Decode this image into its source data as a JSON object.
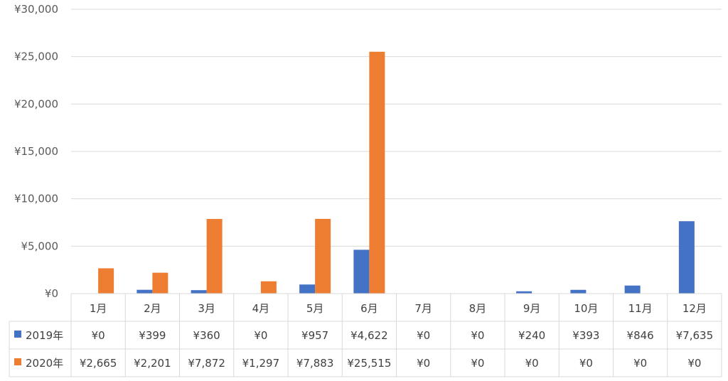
{
  "chart_data": {
    "type": "bar",
    "categories": [
      "1月",
      "2月",
      "3月",
      "4月",
      "5月",
      "6月",
      "7月",
      "8月",
      "9月",
      "10月",
      "11月",
      "12月"
    ],
    "series": [
      {
        "name": "2019年",
        "color": "#4472C4",
        "values": [
          0,
          399,
          360,
          0,
          957,
          4622,
          0,
          0,
          240,
          393,
          846,
          7635
        ],
        "labels": [
          "¥0",
          "¥399",
          "¥360",
          "¥0",
          "¥957",
          "¥4,622",
          "¥0",
          "¥0",
          "¥240",
          "¥393",
          "¥846",
          "¥7,635"
        ]
      },
      {
        "name": "2020年",
        "color": "#ED7D31",
        "values": [
          2665,
          2201,
          7872,
          1297,
          7883,
          25515,
          0,
          0,
          0,
          0,
          0,
          0
        ],
        "labels": [
          "¥2,665",
          "¥2,201",
          "¥7,872",
          "¥1,297",
          "¥7,883",
          "¥25,515",
          "¥0",
          "¥0",
          "¥0",
          "¥0",
          "¥0",
          "¥0"
        ]
      }
    ],
    "ylim": [
      0,
      30000
    ],
    "yticks": [
      {
        "value": 0,
        "label": "¥0"
      },
      {
        "value": 5000,
        "label": "¥5,000"
      },
      {
        "value": 10000,
        "label": "¥10,000"
      },
      {
        "value": 15000,
        "label": "¥15,000"
      },
      {
        "value": 20000,
        "label": "¥20,000"
      },
      {
        "value": 25000,
        "label": "¥25,000"
      },
      {
        "value": 30000,
        "label": "¥30,000"
      }
    ],
    "grid": true,
    "legend": "data-table"
  }
}
